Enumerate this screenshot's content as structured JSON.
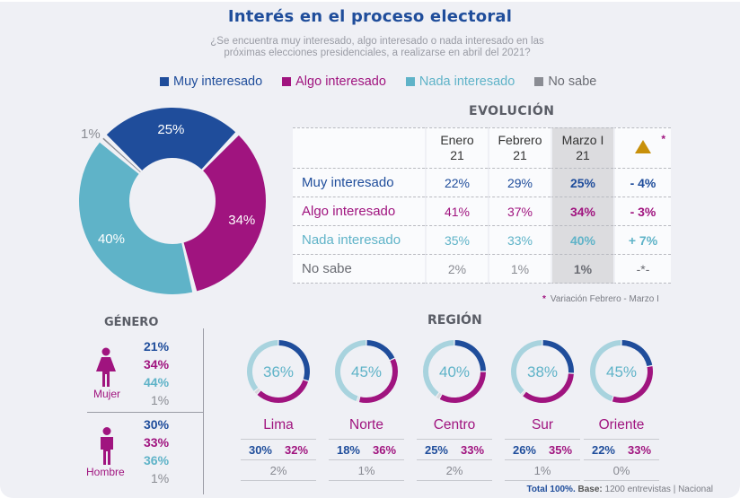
{
  "title": "Interés en el proceso electoral",
  "subtitle_line1": "¿Se encuentra muy interesado, algo interesado o nada interesado en las",
  "subtitle_line2": "próximas elecciones presidenciales, a realizarse en abril del 2021?",
  "colors": {
    "muy": "#1f4d9b",
    "algo": "#a0147f",
    "nada": "#5fb3c8",
    "nada_light": "#a8d3de",
    "nosabe": "#8a8c93",
    "nosabe_light": "#d6d8dc",
    "delta_icon": "#c8900a"
  },
  "legend": [
    {
      "label": "Muy interesado",
      "color": "#1f4d9b"
    },
    {
      "label": "Algo interesado",
      "color": "#a0147f"
    },
    {
      "label": "Nada interesado",
      "color": "#5fb3c8"
    },
    {
      "label": "No sabe",
      "color": "#8a8c93"
    }
  ],
  "chart_data": [
    {
      "type": "pie",
      "title": "Interés en el proceso electoral - Total",
      "categories": [
        "Muy interesado",
        "Algo interesado",
        "Nada interesado",
        "No sabe"
      ],
      "values": [
        25,
        34,
        40,
        1
      ],
      "labels": [
        "25%",
        "34%",
        "40%",
        "1%"
      ],
      "donut": true
    },
    {
      "type": "table",
      "title": "EVOLUCIÓN",
      "columns": [
        "",
        "Enero 21",
        "Febrero 21",
        "Marzo I 21",
        "Variación"
      ],
      "column_lines": [
        [
          "Enero",
          "21"
        ],
        [
          "Febrero",
          "21"
        ],
        [
          "Marzo I",
          "21"
        ]
      ],
      "rows": [
        {
          "label": "Muy interesado",
          "values": [
            "22%",
            "29%",
            "25%"
          ],
          "delta": "- 4%"
        },
        {
          "label": "Algo interesado",
          "values": [
            "41%",
            "37%",
            "34%"
          ],
          "delta": "- 3%"
        },
        {
          "label": "Nada interesado",
          "values": [
            "35%",
            "33%",
            "40%"
          ],
          "delta": "+ 7%"
        },
        {
          "label": "No sabe",
          "values": [
            "2%",
            "1%",
            "1%"
          ],
          "delta": "-*-"
        }
      ],
      "footnote_star": "*",
      "footnote": "Variación Febrero - Marzo I"
    },
    {
      "type": "table",
      "title": "GÉNERO",
      "groups": [
        {
          "label": "Mujer",
          "values": [
            "21%",
            "34%",
            "44%",
            "1%"
          ]
        },
        {
          "label": "Hombre",
          "values": [
            "30%",
            "33%",
            "36%",
            "1%"
          ]
        }
      ]
    },
    {
      "type": "pie",
      "title": "REGIÓN",
      "series_order": [
        "Muy interesado",
        "Algo interesado",
        "No sabe",
        "Nada interesado"
      ],
      "regions": [
        {
          "name": "Lima",
          "muy": 30,
          "algo": 32,
          "nosabe": 2,
          "nada": 36,
          "muy_label": "30%",
          "algo_label": "32%",
          "nosabe_label": "2%",
          "nada_label": "36%"
        },
        {
          "name": "Norte",
          "muy": 18,
          "algo": 36,
          "nosabe": 1,
          "nada": 45,
          "muy_label": "18%",
          "algo_label": "36%",
          "nosabe_label": "1%",
          "nada_label": "45%"
        },
        {
          "name": "Centro",
          "muy": 25,
          "algo": 33,
          "nosabe": 2,
          "nada": 40,
          "muy_label": "25%",
          "algo_label": "33%",
          "nosabe_label": "2%",
          "nada_label": "40%"
        },
        {
          "name": "Sur",
          "muy": 26,
          "algo": 35,
          "nosabe": 1,
          "nada": 38,
          "muy_label": "26%",
          "algo_label": "35%",
          "nosabe_label": "1%",
          "nada_label": "38%"
        },
        {
          "name": "Oriente",
          "muy": 22,
          "algo": 33,
          "nosabe": 0,
          "nada": 45,
          "muy_label": "22%",
          "algo_label": "33%",
          "nosabe_label": "0%",
          "nada_label": "45%"
        }
      ]
    }
  ],
  "evolucion_title": "EVOLUCIÓN",
  "genero_title": "GÉNERO",
  "region_title": "REGIÓN",
  "footer": {
    "total": "Total 100%.",
    "base_label": "Base:",
    "base_text": "1200 entrevistas | Nacional"
  }
}
